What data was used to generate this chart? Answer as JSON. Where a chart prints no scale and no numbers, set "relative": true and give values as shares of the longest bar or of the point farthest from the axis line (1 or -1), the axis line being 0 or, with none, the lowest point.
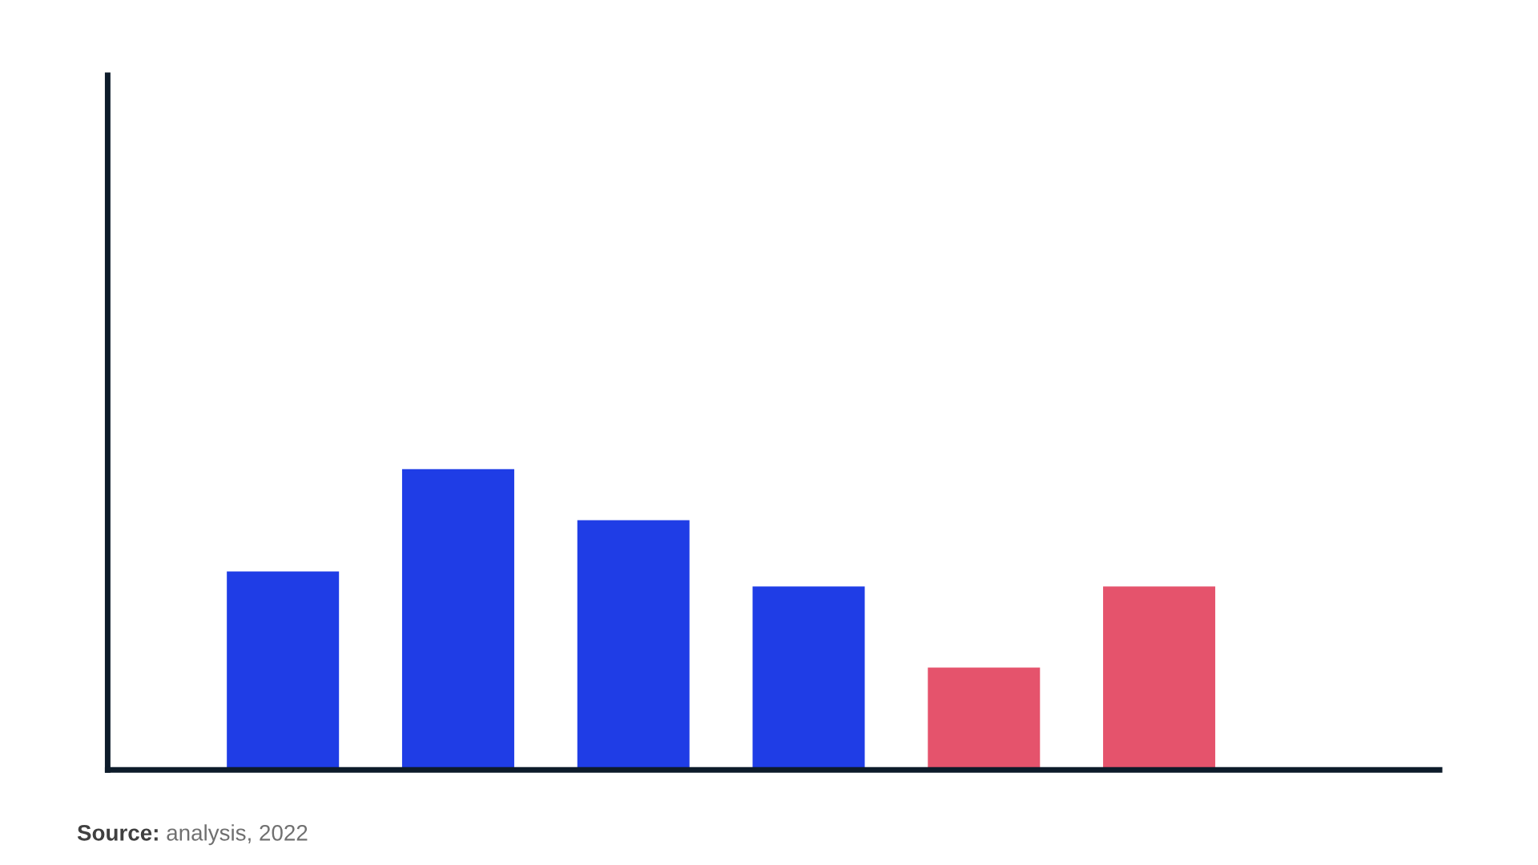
{
  "chart_data": {
    "type": "bar",
    "relative": true,
    "categories": [
      null,
      null,
      null,
      null,
      null,
      null
    ],
    "values": [
      0.66,
      1,
      0.83,
      0.61,
      0.34,
      0.61
    ],
    "colors": [
      "#1f3de6",
      "#1f3de6",
      "#1f3de6",
      "#1f3de6",
      "#e5536c",
      "#e5536c"
    ],
    "annotations": [
      "Source: analysis, 2022"
    ]
  }
}
